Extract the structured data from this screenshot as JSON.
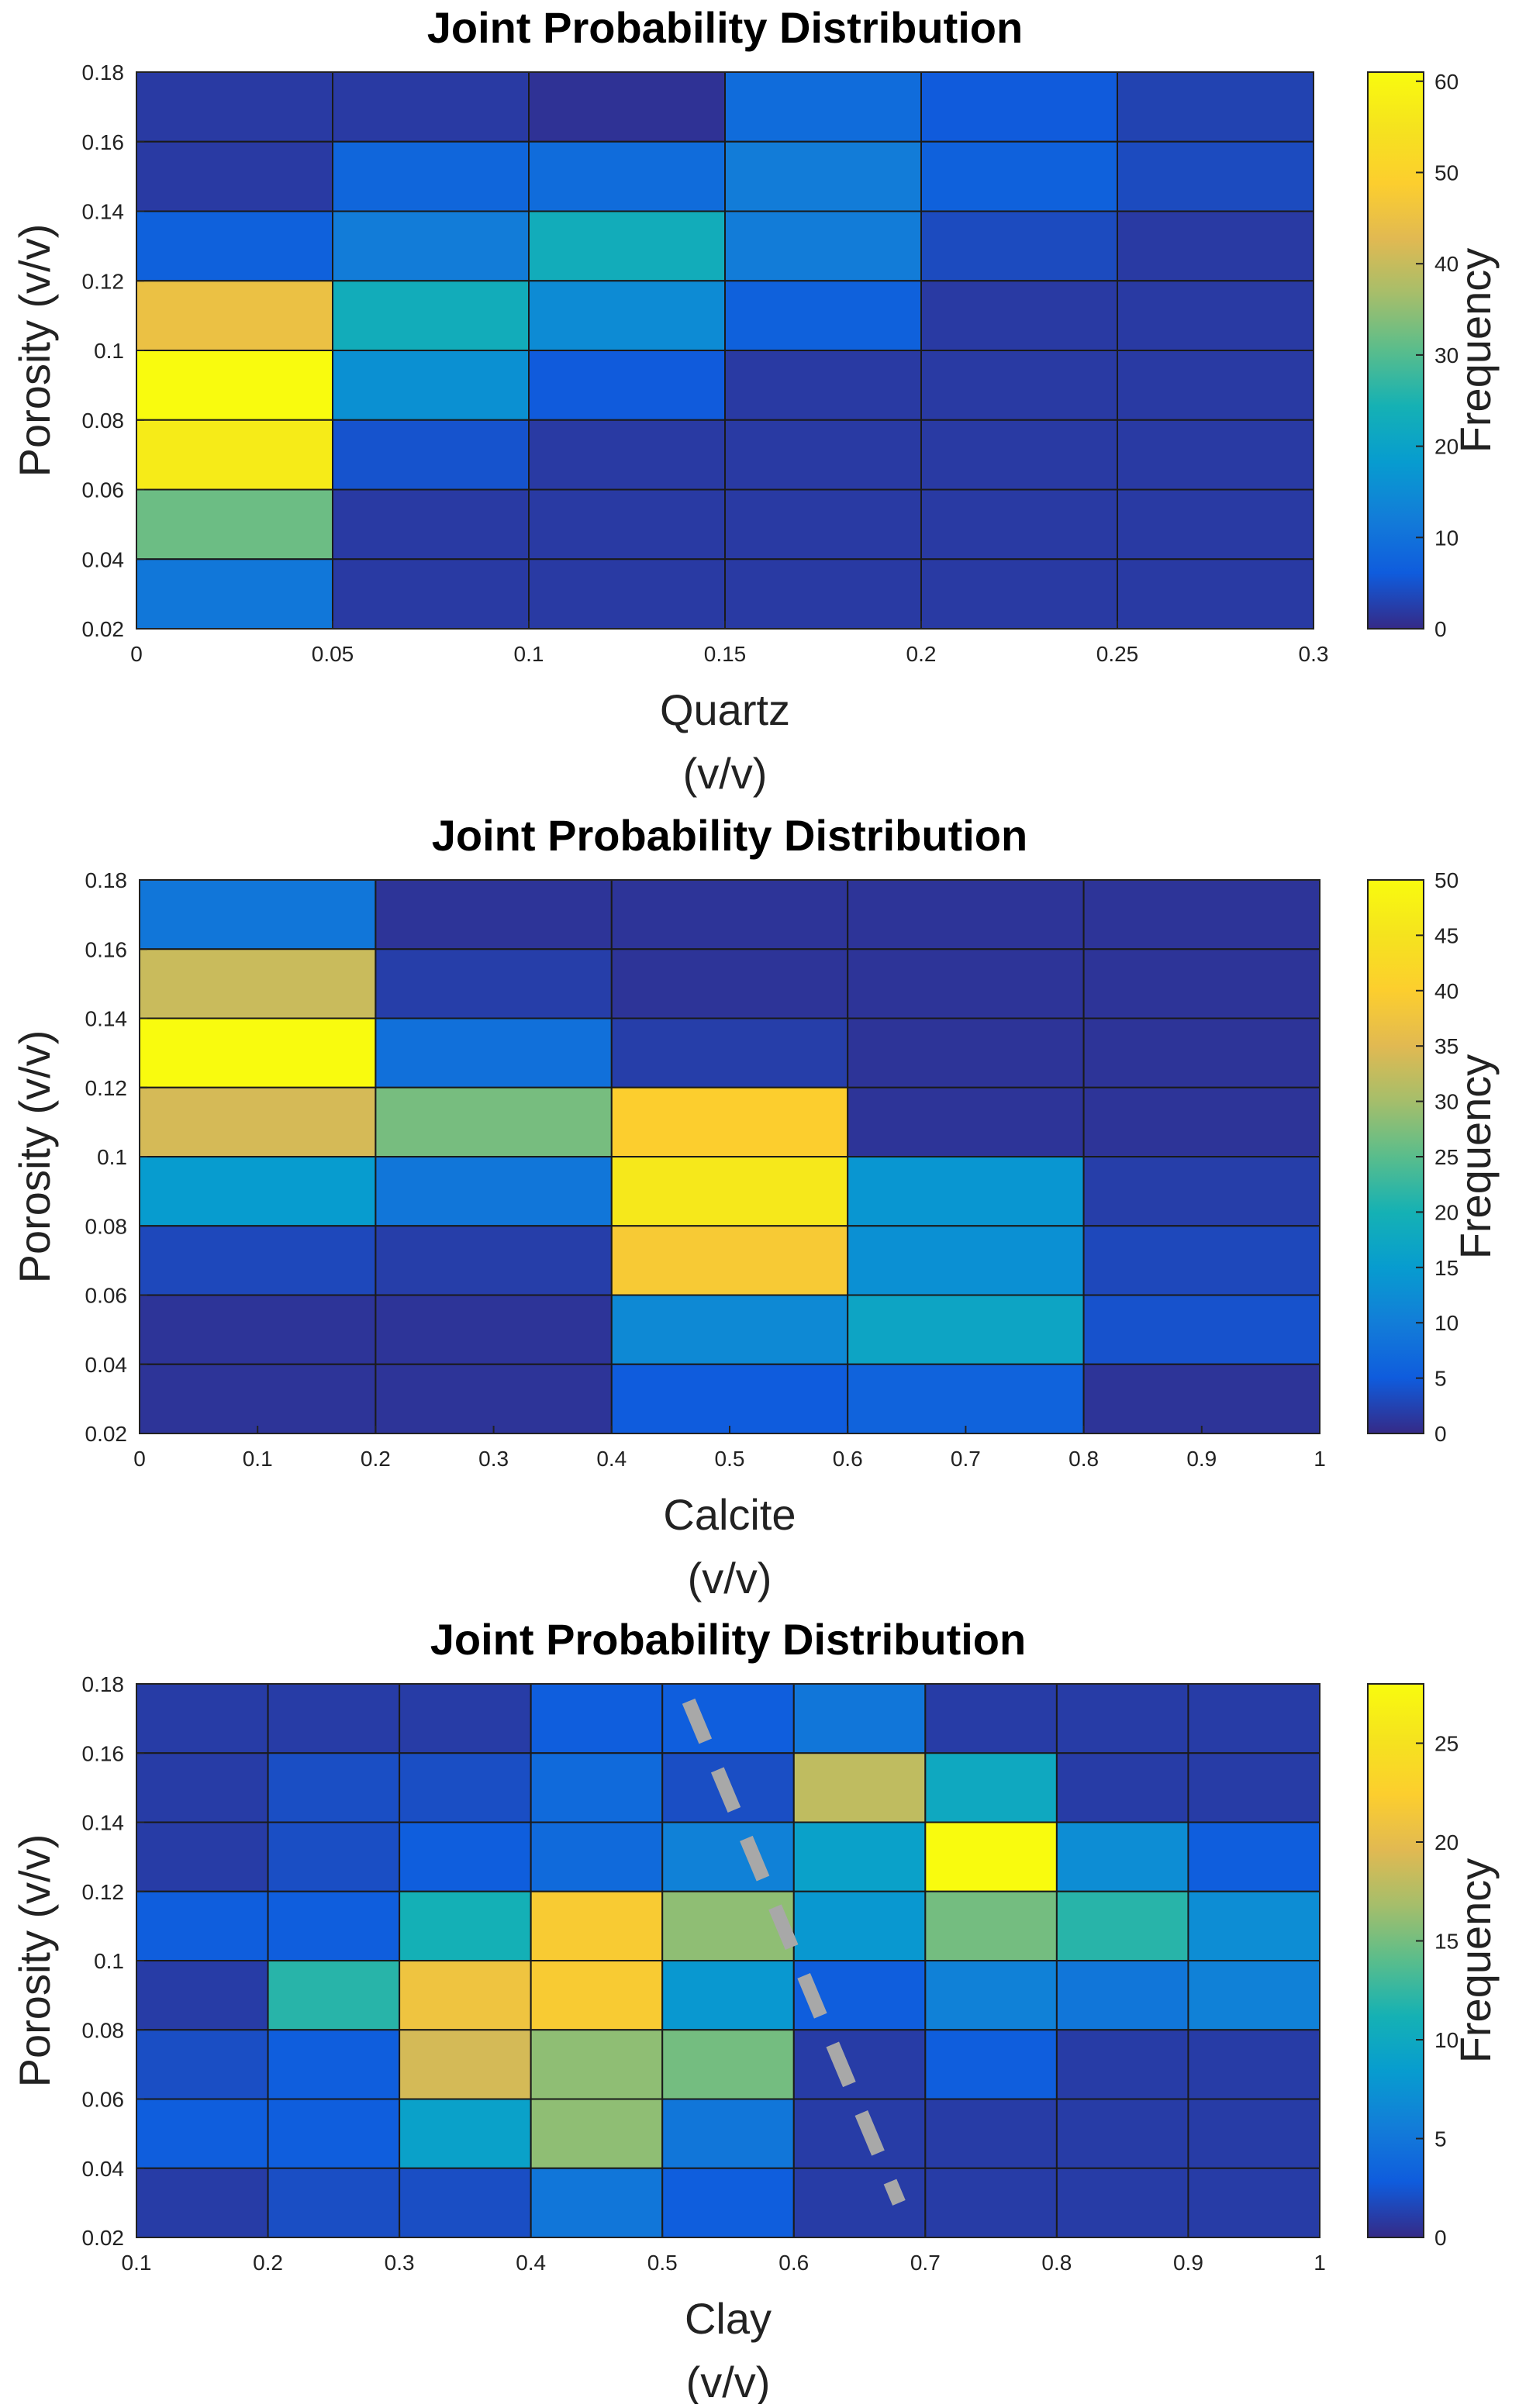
{
  "chart_data": [
    {
      "type": "heatmap",
      "title": "Joint Probability Distribution",
      "xlabel": [
        "Quartz",
        "(v/v)"
      ],
      "ylabel": "Porosity (v/v)",
      "colorbar_label": "Frequency",
      "xlim": [
        0,
        0.3
      ],
      "ylim": [
        0.02,
        0.18
      ],
      "x_edges": [
        0,
        0.05,
        0.1,
        0.15,
        0.2,
        0.25,
        0.3
      ],
      "y_edges": [
        0.02,
        0.04,
        0.06,
        0.08,
        0.1,
        0.12,
        0.14,
        0.16,
        0.18
      ],
      "x_ticks": [
        "0",
        "0.05",
        "0.1",
        "0.15",
        "0.2",
        "0.25",
        "0.3"
      ],
      "y_ticks": [
        "0.02",
        "0.04",
        "0.06",
        "0.08",
        "0.1",
        "0.12",
        "0.14",
        "0.16",
        "0.18"
      ],
      "clim": [
        0,
        61
      ],
      "colorbar_ticks": [
        "0",
        "10",
        "20",
        "30",
        "40",
        "50",
        "60"
      ],
      "colorbar_tick_values": [
        0,
        10,
        20,
        30,
        40,
        50,
        60
      ],
      "values_top_to_bottom": [
        [
          2,
          2,
          1,
          9,
          6,
          3
        ],
        [
          2,
          8,
          9,
          12,
          7,
          4
        ],
        [
          7,
          12,
          23,
          12,
          4,
          2
        ],
        [
          45,
          23,
          15,
          7,
          2,
          2
        ],
        [
          61,
          16,
          6,
          2,
          2,
          2
        ],
        [
          57,
          5,
          2,
          2,
          2,
          2
        ],
        [
          32,
          2,
          2,
          2,
          2,
          2
        ],
        [
          11,
          2,
          2,
          2,
          2,
          2
        ]
      ]
    },
    {
      "type": "heatmap",
      "title": "Joint Probability Distribution",
      "xlabel": [
        "Calcite",
        "(v/v)"
      ],
      "ylabel": "Porosity (v/v)",
      "colorbar_label": "Frequency",
      "xlim": [
        0,
        1
      ],
      "ylim": [
        0.02,
        0.18
      ],
      "x_edges": [
        0,
        0.2,
        0.4,
        0.6,
        0.8,
        1
      ],
      "y_edges": [
        0.02,
        0.04,
        0.06,
        0.08,
        0.1,
        0.12,
        0.14,
        0.16,
        0.18
      ],
      "x_ticks": [
        "0",
        "0.1",
        "0.2",
        "0.3",
        "0.4",
        "0.5",
        "0.6",
        "0.7",
        "0.8",
        "0.9",
        "1"
      ],
      "y_ticks": [
        "0.02",
        "0.04",
        "0.06",
        "0.08",
        "0.1",
        "0.12",
        "0.14",
        "0.16",
        "0.18"
      ],
      "clim": [
        0,
        50
      ],
      "colorbar_ticks": [
        "0",
        "5",
        "10",
        "15",
        "20",
        "25",
        "30",
        "35",
        "40",
        "45",
        "50"
      ],
      "colorbar_tick_values": [
        0,
        5,
        10,
        15,
        20,
        25,
        30,
        35,
        40,
        45,
        50
      ],
      "values_top_to_bottom": [
        [
          9,
          1,
          1,
          1,
          1
        ],
        [
          33,
          2,
          1,
          1,
          1
        ],
        [
          50,
          8,
          2,
          1,
          1
        ],
        [
          34,
          27,
          40,
          1,
          1
        ],
        [
          15,
          9,
          46,
          14,
          2
        ],
        [
          3,
          2,
          39,
          13,
          3
        ],
        [
          1,
          1,
          12,
          17,
          4
        ],
        [
          1,
          1,
          5,
          6,
          1
        ]
      ]
    },
    {
      "type": "heatmap",
      "title": "Joint Probability Distribution",
      "xlabel": [
        "Clay",
        "(v/v)"
      ],
      "ylabel": "Porosity (v/v)",
      "colorbar_label": "Frequency",
      "xlim": [
        0.1,
        1
      ],
      "ylim": [
        0.02,
        0.18
      ],
      "x_edges": [
        0.1,
        0.2,
        0.3,
        0.4,
        0.5,
        0.6,
        0.7,
        0.8,
        0.9,
        1
      ],
      "y_edges": [
        0.02,
        0.04,
        0.06,
        0.08,
        0.1,
        0.12,
        0.14,
        0.16,
        0.18
      ],
      "x_ticks": [
        "0.1",
        "0.2",
        "0.3",
        "0.4",
        "0.5",
        "0.6",
        "0.7",
        "0.8",
        "0.9",
        "1"
      ],
      "y_ticks": [
        "0.02",
        "0.04",
        "0.06",
        "0.08",
        "0.1",
        "0.12",
        "0.14",
        "0.16",
        "0.18"
      ],
      "clim": [
        0,
        28
      ],
      "colorbar_ticks": [
        "0",
        "5",
        "10",
        "15",
        "20",
        "25"
      ],
      "colorbar_tick_values": [
        0,
        5,
        10,
        15,
        20,
        25
      ],
      "values_top_to_bottom": [
        [
          1,
          1,
          1,
          3,
          3,
          5,
          1,
          1,
          1
        ],
        [
          1,
          2,
          2,
          4,
          2,
          18,
          10,
          1,
          1
        ],
        [
          1,
          2,
          3,
          4,
          6,
          9,
          28,
          7,
          3
        ],
        [
          3,
          3,
          11,
          22,
          16,
          8,
          15,
          12,
          7
        ],
        [
          1,
          12,
          21,
          22,
          8,
          3,
          6,
          5,
          6
        ],
        [
          2,
          3,
          19,
          16,
          15,
          1,
          3,
          1,
          1
        ],
        [
          3,
          3,
          9,
          16,
          5,
          1,
          1,
          1,
          1
        ],
        [
          1,
          2,
          2,
          5,
          3,
          1,
          1,
          1,
          1
        ]
      ],
      "annotation": {
        "type": "dashed-line",
        "color": "#a8a8a8",
        "from": [
          0.52,
          0.175
        ],
        "to": [
          0.68,
          0.03
        ]
      }
    }
  ]
}
